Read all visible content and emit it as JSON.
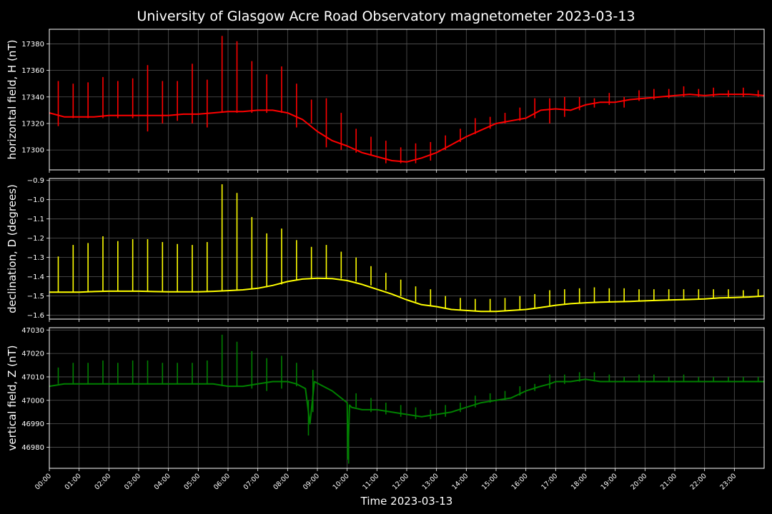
{
  "title": "University of Glasgow Acre Road Observatory magnetometer 2023-03-13",
  "xlabel": "Time 2023-03-13",
  "x_ticks": [
    "00:00",
    "01:00",
    "02:00",
    "03:00",
    "04:00",
    "05:00",
    "06:00",
    "07:00",
    "08:00",
    "09:00",
    "10:00",
    "11:00",
    "12:00",
    "13:00",
    "14:00",
    "15:00",
    "16:00",
    "17:00",
    "18:00",
    "19:00",
    "20:00",
    "21:00",
    "22:00",
    "23:00"
  ],
  "colors": {
    "background": "#000000",
    "grid": "#555555",
    "h": "#ff0000",
    "d": "#ffff00",
    "z": "#008000"
  },
  "chart_data": [
    {
      "type": "line",
      "ylabel": "horizontal field, H (nT)",
      "color": "#ff0000",
      "xlim": [
        0,
        24
      ],
      "ylim": [
        17285,
        17391
      ],
      "yticks": [
        17300,
        17320,
        17340,
        17360,
        17380
      ],
      "x": [
        0,
        0.5,
        1,
        1.5,
        2,
        2.5,
        3,
        3.5,
        4,
        4.5,
        5,
        5.5,
        6,
        6.5,
        7,
        7.5,
        8,
        8.5,
        9,
        9.5,
        10,
        10.5,
        11,
        11.5,
        12,
        12.5,
        13,
        13.5,
        14,
        14.5,
        15,
        15.5,
        16,
        16.5,
        17,
        17.5,
        18,
        18.5,
        19,
        19.5,
        20,
        20.5,
        21,
        21.5,
        22,
        22.5,
        23,
        23.5,
        24
      ],
      "y": [
        17328,
        17325,
        17325,
        17325,
        17326,
        17326,
        17326,
        17326,
        17326,
        17327,
        17327,
        17328,
        17329,
        17329,
        17330,
        17330,
        17328,
        17323,
        17314,
        17307,
        17303,
        17298,
        17295,
        17292,
        17291,
        17294,
        17298,
        17304,
        17310,
        17315,
        17320,
        17322,
        17324,
        17330,
        17331,
        17330,
        17334,
        17336,
        17336,
        17338,
        17339,
        17340,
        17341,
        17342,
        17341,
        17342,
        17342,
        17342,
        17341
      ],
      "spikes": [
        {
          "t": 0.3,
          "min": 17318,
          "max": 17352
        },
        {
          "t": 0.8,
          "min": 17324,
          "max": 17350
        },
        {
          "t": 1.3,
          "min": 17324,
          "max": 17351
        },
        {
          "t": 1.8,
          "min": 17324,
          "max": 17355
        },
        {
          "t": 2.3,
          "min": 17324,
          "max": 17352
        },
        {
          "t": 2.8,
          "min": 17324,
          "max": 17354
        },
        {
          "t": 3.3,
          "min": 17314,
          "max": 17364
        },
        {
          "t": 3.8,
          "min": 17320,
          "max": 17352
        },
        {
          "t": 4.3,
          "min": 17322,
          "max": 17352
        },
        {
          "t": 4.8,
          "min": 17320,
          "max": 17365
        },
        {
          "t": 5.3,
          "min": 17317,
          "max": 17353
        },
        {
          "t": 5.8,
          "min": 17328,
          "max": 17386
        },
        {
          "t": 6.3,
          "min": 17328,
          "max": 17382
        },
        {
          "t": 6.8,
          "min": 17328,
          "max": 17367
        },
        {
          "t": 7.3,
          "min": 17328,
          "max": 17357
        },
        {
          "t": 7.8,
          "min": 17328,
          "max": 17363
        },
        {
          "t": 8.3,
          "min": 17317,
          "max": 17350
        },
        {
          "t": 8.8,
          "min": 17320,
          "max": 17338
        },
        {
          "t": 9.3,
          "min": 17302,
          "max": 17339
        },
        {
          "t": 9.8,
          "min": 17300,
          "max": 17328
        },
        {
          "t": 10.3,
          "min": 17298,
          "max": 17316
        },
        {
          "t": 10.8,
          "min": 17296,
          "max": 17310
        },
        {
          "t": 11.3,
          "min": 17290,
          "max": 17307
        },
        {
          "t": 11.8,
          "min": 17290,
          "max": 17302
        },
        {
          "t": 12.3,
          "min": 17290,
          "max": 17305
        },
        {
          "t": 12.8,
          "min": 17292,
          "max": 17306
        },
        {
          "t": 13.3,
          "min": 17300,
          "max": 17311
        },
        {
          "t": 13.8,
          "min": 17306,
          "max": 17316
        },
        {
          "t": 14.3,
          "min": 17312,
          "max": 17324
        },
        {
          "t": 14.8,
          "min": 17316,
          "max": 17325
        },
        {
          "t": 15.3,
          "min": 17320,
          "max": 17328
        },
        {
          "t": 15.8,
          "min": 17322,
          "max": 17332
        },
        {
          "t": 16.3,
          "min": 17324,
          "max": 17339
        },
        {
          "t": 16.8,
          "min": 17320,
          "max": 17339
        },
        {
          "t": 17.3,
          "min": 17325,
          "max": 17340
        },
        {
          "t": 17.8,
          "min": 17330,
          "max": 17340
        },
        {
          "t": 18.3,
          "min": 17332,
          "max": 17339
        },
        {
          "t": 18.8,
          "min": 17334,
          "max": 17343
        },
        {
          "t": 19.3,
          "min": 17332,
          "max": 17340
        },
        {
          "t": 19.8,
          "min": 17337,
          "max": 17345
        },
        {
          "t": 20.3,
          "min": 17338,
          "max": 17346
        },
        {
          "t": 20.8,
          "min": 17339,
          "max": 17346
        },
        {
          "t": 21.3,
          "min": 17340,
          "max": 17348
        },
        {
          "t": 21.8,
          "min": 17340,
          "max": 17346
        },
        {
          "t": 22.3,
          "min": 17340,
          "max": 17347
        },
        {
          "t": 22.8,
          "min": 17340,
          "max": 17345
        },
        {
          "t": 23.3,
          "min": 17340,
          "max": 17347
        },
        {
          "t": 23.8,
          "min": 17340,
          "max": 17345
        }
      ]
    },
    {
      "type": "line",
      "ylabel": "declination, D (degrees)",
      "color": "#ffff00",
      "xlim": [
        0,
        24
      ],
      "ylim": [
        -1.62,
        -0.89
      ],
      "yticks": [
        -0.9,
        -1.0,
        -1.1,
        -1.2,
        -1.3,
        -1.4,
        -1.5,
        -1.6
      ],
      "ytick_labels": [
        "−0.9",
        "−1.0",
        "−1.1",
        "−1.2",
        "−1.3",
        "−1.4",
        "−1.5",
        "−1.6"
      ],
      "x": [
        0,
        0.5,
        1,
        1.5,
        2,
        2.5,
        3,
        3.5,
        4,
        4.5,
        5,
        5.5,
        6,
        6.5,
        7,
        7.5,
        8,
        8.5,
        9,
        9.5,
        10,
        10.5,
        11,
        11.5,
        12,
        12.5,
        13,
        13.5,
        14,
        14.5,
        15,
        15.5,
        16,
        16.5,
        17,
        17.5,
        18,
        18.5,
        19,
        19.5,
        20,
        20.5,
        21,
        21.5,
        22,
        22.5,
        23,
        23.5,
        24
      ],
      "y": [
        -1.48,
        -1.48,
        -1.48,
        -1.477,
        -1.475,
        -1.475,
        -1.475,
        -1.477,
        -1.478,
        -1.478,
        -1.478,
        -1.476,
        -1.472,
        -1.468,
        -1.46,
        -1.445,
        -1.425,
        -1.412,
        -1.408,
        -1.41,
        -1.42,
        -1.44,
        -1.465,
        -1.49,
        -1.52,
        -1.545,
        -1.555,
        -1.57,
        -1.575,
        -1.58,
        -1.58,
        -1.575,
        -1.57,
        -1.56,
        -1.548,
        -1.54,
        -1.535,
        -1.532,
        -1.53,
        -1.528,
        -1.525,
        -1.522,
        -1.52,
        -1.518,
        -1.515,
        -1.51,
        -1.508,
        -1.505,
        -1.5
      ],
      "spikes": [
        {
          "t": 0.3,
          "min": -1.48,
          "max": -1.295
        },
        {
          "t": 0.8,
          "min": -1.48,
          "max": -1.235
        },
        {
          "t": 1.3,
          "min": -1.48,
          "max": -1.225
        },
        {
          "t": 1.8,
          "min": -1.478,
          "max": -1.19
        },
        {
          "t": 2.3,
          "min": -1.476,
          "max": -1.215
        },
        {
          "t": 2.8,
          "min": -1.475,
          "max": -1.205
        },
        {
          "t": 3.3,
          "min": -1.475,
          "max": -1.205
        },
        {
          "t": 3.8,
          "min": -1.477,
          "max": -1.22
        },
        {
          "t": 4.3,
          "min": -1.478,
          "max": -1.23
        },
        {
          "t": 4.8,
          "min": -1.478,
          "max": -1.235
        },
        {
          "t": 5.3,
          "min": -1.478,
          "max": -1.22
        },
        {
          "t": 5.8,
          "min": -1.474,
          "max": -0.92
        },
        {
          "t": 6.3,
          "min": -1.47,
          "max": -0.965
        },
        {
          "t": 6.8,
          "min": -1.465,
          "max": -1.09
        },
        {
          "t": 7.3,
          "min": -1.455,
          "max": -1.175
        },
        {
          "t": 7.8,
          "min": -1.44,
          "max": -1.15
        },
        {
          "t": 8.3,
          "min": -1.42,
          "max": -1.21
        },
        {
          "t": 8.8,
          "min": -1.41,
          "max": -1.245
        },
        {
          "t": 9.3,
          "min": -1.408,
          "max": -1.235
        },
        {
          "t": 9.8,
          "min": -1.41,
          "max": -1.27
        },
        {
          "t": 10.3,
          "min": -1.425,
          "max": -1.3
        },
        {
          "t": 10.8,
          "min": -1.445,
          "max": -1.345
        },
        {
          "t": 11.3,
          "min": -1.47,
          "max": -1.38
        },
        {
          "t": 11.8,
          "min": -1.5,
          "max": -1.415
        },
        {
          "t": 12.3,
          "min": -1.53,
          "max": -1.45
        },
        {
          "t": 12.8,
          "min": -1.55,
          "max": -1.465
        },
        {
          "t": 13.3,
          "min": -1.565,
          "max": -1.5
        },
        {
          "t": 13.8,
          "min": -1.572,
          "max": -1.51
        },
        {
          "t": 14.3,
          "min": -1.578,
          "max": -1.515
        },
        {
          "t": 14.8,
          "min": -1.58,
          "max": -1.515
        },
        {
          "t": 15.3,
          "min": -1.577,
          "max": -1.51
        },
        {
          "t": 15.8,
          "min": -1.572,
          "max": -1.5
        },
        {
          "t": 16.3,
          "min": -1.565,
          "max": -1.49
        },
        {
          "t": 16.8,
          "min": -1.552,
          "max": -1.47
        },
        {
          "t": 17.3,
          "min": -1.543,
          "max": -1.465
        },
        {
          "t": 17.8,
          "min": -1.537,
          "max": -1.46
        },
        {
          "t": 18.3,
          "min": -1.533,
          "max": -1.455
        },
        {
          "t": 18.8,
          "min": -1.531,
          "max": -1.46
        },
        {
          "t": 19.3,
          "min": -1.529,
          "max": -1.46
        },
        {
          "t": 19.8,
          "min": -1.526,
          "max": -1.465
        },
        {
          "t": 20.3,
          "min": -1.523,
          "max": -1.465
        },
        {
          "t": 20.8,
          "min": -1.521,
          "max": -1.465
        },
        {
          "t": 21.3,
          "min": -1.519,
          "max": -1.465
        },
        {
          "t": 21.8,
          "min": -1.516,
          "max": -1.465
        },
        {
          "t": 22.3,
          "min": -1.512,
          "max": -1.465
        },
        {
          "t": 22.8,
          "min": -1.509,
          "max": -1.465
        },
        {
          "t": 23.3,
          "min": -1.506,
          "max": -1.47
        },
        {
          "t": 23.8,
          "min": -1.502,
          "max": -1.465
        }
      ]
    },
    {
      "type": "line",
      "ylabel": "vertical field, Z (nT)",
      "color": "#008000",
      "xlim": [
        0,
        24
      ],
      "ylim": [
        46971,
        47031
      ],
      "yticks": [
        46980,
        46990,
        47000,
        47010,
        47020,
        47030
      ],
      "x": [
        0,
        0.5,
        1,
        1.5,
        2,
        2.5,
        3,
        3.5,
        4,
        4.5,
        5,
        5.5,
        6,
        6.5,
        7,
        7.5,
        8,
        8.3,
        8.6,
        8.75,
        8.9,
        9.2,
        9.5,
        9.8,
        10,
        10.02,
        10.08,
        10.15,
        10.5,
        11,
        11.5,
        12,
        12.5,
        13,
        13.5,
        14,
        14.5,
        15,
        15.5,
        16,
        16.5,
        16.8,
        17,
        17.5,
        18,
        18.5,
        19,
        19.5,
        20,
        20.5,
        21,
        21.5,
        22,
        22.5,
        23,
        23.5,
        24
      ],
      "y": [
        47006,
        47007,
        47007,
        47007,
        47007,
        47007,
        47007,
        47007,
        47007,
        47007,
        47007,
        47007,
        47006,
        47006,
        47007,
        47008,
        47008,
        47007,
        47005,
        46990,
        47008,
        47006,
        47004,
        47001,
        46999,
        46975,
        46998,
        46997,
        46996,
        46996,
        46995,
        46994,
        46993,
        46994,
        46995,
        46997,
        46999,
        47000,
        47001,
        47004,
        47006,
        47007,
        47008,
        47008,
        47009,
        47008,
        47008,
        47008,
        47008,
        47008,
        47008,
        47008,
        47008,
        47008,
        47008,
        47008,
        47008
      ],
      "spikes": [
        {
          "t": 0.3,
          "min": 47007,
          "max": 47014
        },
        {
          "t": 0.8,
          "min": 47007,
          "max": 47016
        },
        {
          "t": 1.3,
          "min": 47007,
          "max": 47016
        },
        {
          "t": 1.8,
          "min": 47007,
          "max": 47017
        },
        {
          "t": 2.3,
          "min": 47007,
          "max": 47016
        },
        {
          "t": 2.8,
          "min": 47007,
          "max": 47017
        },
        {
          "t": 3.3,
          "min": 47007,
          "max": 47017
        },
        {
          "t": 3.8,
          "min": 47007,
          "max": 47016
        },
        {
          "t": 4.3,
          "min": 47007,
          "max": 47016
        },
        {
          "t": 4.8,
          "min": 47007,
          "max": 47016
        },
        {
          "t": 5.3,
          "min": 47007,
          "max": 47017
        },
        {
          "t": 5.8,
          "min": 47006,
          "max": 47028
        },
        {
          "t": 6.3,
          "min": 47006,
          "max": 47025
        },
        {
          "t": 6.8,
          "min": 47005,
          "max": 47021
        },
        {
          "t": 7.3,
          "min": 47004,
          "max": 47018
        },
        {
          "t": 7.8,
          "min": 47005,
          "max": 47019
        },
        {
          "t": 8.3,
          "min": 47006,
          "max": 47016
        },
        {
          "t": 8.7,
          "min": 46985,
          "max": 47000
        },
        {
          "t": 8.85,
          "min": 46995,
          "max": 47013
        },
        {
          "t": 10.05,
          "min": 46973,
          "max": 46990
        },
        {
          "t": 10.3,
          "min": 46997,
          "max": 47003
        },
        {
          "t": 10.8,
          "min": 46995,
          "max": 47001
        },
        {
          "t": 11.3,
          "min": 46994,
          "max": 46999
        },
        {
          "t": 11.8,
          "min": 46993,
          "max": 46998
        },
        {
          "t": 12.3,
          "min": 46992,
          "max": 46997
        },
        {
          "t": 12.8,
          "min": 46992,
          "max": 46996
        },
        {
          "t": 13.3,
          "min": 46993,
          "max": 46998
        },
        {
          "t": 13.8,
          "min": 46995,
          "max": 46999
        },
        {
          "t": 14.3,
          "min": 46997,
          "max": 47002
        },
        {
          "t": 14.8,
          "min": 46999,
          "max": 47003
        },
        {
          "t": 15.3,
          "min": 47000,
          "max": 47004
        },
        {
          "t": 15.8,
          "min": 47002,
          "max": 47006
        },
        {
          "t": 16.3,
          "min": 47004,
          "max": 47007
        },
        {
          "t": 16.8,
          "min": 47005,
          "max": 47011
        },
        {
          "t": 17.3,
          "min": 47007,
          "max": 47011
        },
        {
          "t": 17.8,
          "min": 47008,
          "max": 47012
        },
        {
          "t": 18.3,
          "min": 47008,
          "max": 47012
        },
        {
          "t": 18.8,
          "min": 47008,
          "max": 47011
        },
        {
          "t": 19.3,
          "min": 47008,
          "max": 47010
        },
        {
          "t": 19.8,
          "min": 47008,
          "max": 47011
        },
        {
          "t": 20.3,
          "min": 47008,
          "max": 47011
        },
        {
          "t": 20.8,
          "min": 47008,
          "max": 47010
        },
        {
          "t": 21.3,
          "min": 47008,
          "max": 47011
        },
        {
          "t": 21.8,
          "min": 47008,
          "max": 47010
        },
        {
          "t": 22.3,
          "min": 47008,
          "max": 47010
        },
        {
          "t": 22.8,
          "min": 47008,
          "max": 47010
        },
        {
          "t": 23.3,
          "min": 47008,
          "max": 47010
        },
        {
          "t": 23.8,
          "min": 47008,
          "max": 47010
        }
      ]
    }
  ]
}
